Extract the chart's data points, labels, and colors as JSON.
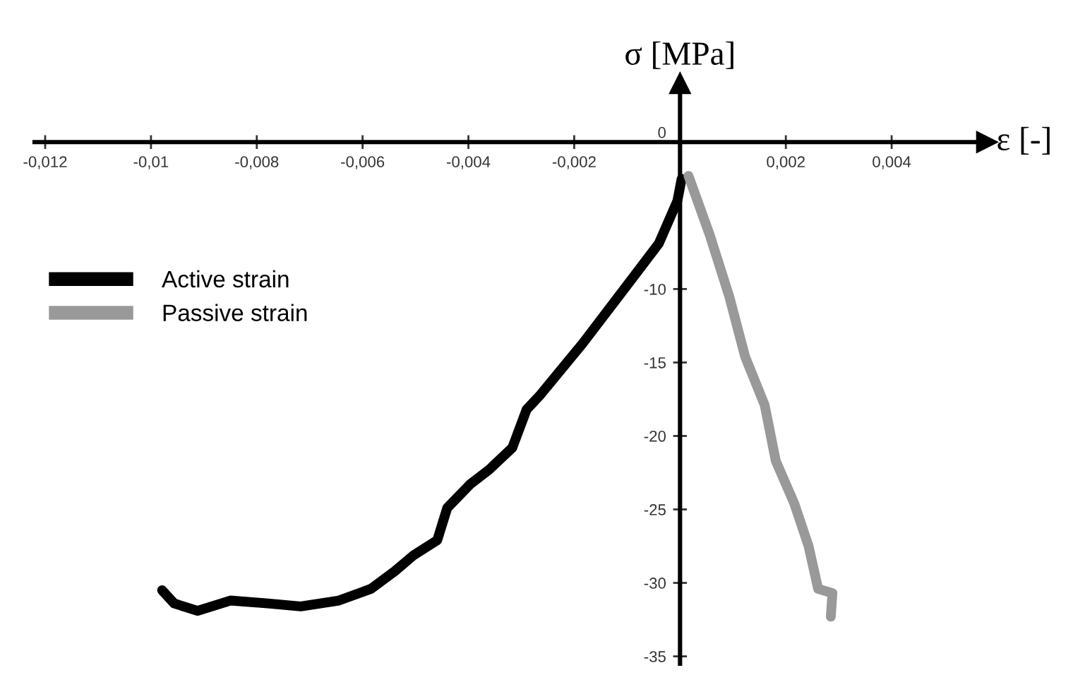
{
  "chart_data": {
    "type": "line",
    "xlabel": "ε [-]",
    "ylabel": "σ [MPa]",
    "xlim": [
      -0.0122,
      0.0058
    ],
    "ylim": [
      -35.5,
      4
    ],
    "xticks": [
      {
        "value": -0.012,
        "label": "-0,012"
      },
      {
        "value": -0.01,
        "label": "-0,01"
      },
      {
        "value": -0.008,
        "label": "-0,008"
      },
      {
        "value": -0.006,
        "label": "-0,006"
      },
      {
        "value": -0.004,
        "label": "-0,004"
      },
      {
        "value": -0.002,
        "label": "-0,002"
      },
      {
        "value": 0.002,
        "label": "0,002"
      },
      {
        "value": 0.004,
        "label": "0,004"
      }
    ],
    "yticks": [
      -35,
      -30,
      -25,
      -20,
      -15,
      -10,
      0
    ],
    "legend": "center left",
    "grid": false,
    "marker": "none",
    "line_style": "solid",
    "series": [
      {
        "name": "Active strain",
        "color": "#000000",
        "x": [
          -0.00979,
          -0.00956,
          -0.00912,
          -0.0085,
          -0.00779,
          -0.00717,
          -0.00645,
          -0.00584,
          -0.00539,
          -0.00503,
          -0.00459,
          -0.0044,
          -0.00397,
          -0.00361,
          -0.00317,
          -0.0029,
          -0.00264,
          -0.00184,
          -0.00095,
          -0.0004,
          -5e-05,
          3e-05
        ],
        "values": [
          -30.5,
          -31.4,
          -31.9,
          -31.2,
          -31.4,
          -31.6,
          -31.2,
          -30.4,
          -29.2,
          -28.1,
          -27.1,
          -24.9,
          -23.3,
          -22.3,
          -20.8,
          -18.2,
          -17.2,
          -13.7,
          -9.5,
          -6.9,
          -4.0,
          -2.5
        ]
      },
      {
        "name": "Passive strain",
        "color": "#999999",
        "x": [
          0.00016,
          0.00056,
          0.00093,
          0.00123,
          0.0016,
          0.00181,
          0.00216,
          0.00243,
          0.00261,
          0.00288,
          0.00285
        ],
        "values": [
          -2.3,
          -6.3,
          -10.5,
          -14.6,
          -17.9,
          -21.7,
          -24.6,
          -27.5,
          -30.4,
          -30.7,
          -32.3
        ]
      }
    ]
  }
}
